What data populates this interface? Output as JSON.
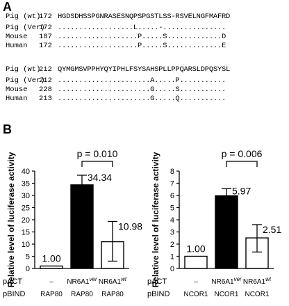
{
  "panel_a": {
    "label": "A",
    "blocks": [
      {
        "rows": [
          {
            "name": "Pig (wt)",
            "start": "172",
            "seq": "HGDSDHSSPGNRASESNQPSPGSTLSS-RSVELNGFMAFRD"
          },
          {
            "name": "Pig (Ver)",
            "start": "172",
            "seq": "..................L.....-..............."
          },
          {
            "name": "Mouse",
            "start": "187",
            "seq": "...................P.....S.............D"
          },
          {
            "name": "Human",
            "start": "172",
            "seq": "...................P.....S.............E"
          }
        ]
      },
      {
        "rows": [
          {
            "name": "Pig (wt)",
            "start": "212",
            "seq": "QYMGMSVPPHYQYIPHLFSYSAHSPLLPPQARSLDPQSYSL"
          },
          {
            "name": "Pig (Ver)",
            "start": "212",
            "seq": "......................A.....P..........."
          },
          {
            "name": "Mouse",
            "start": "228",
            "seq": "......................G.....S..........."
          },
          {
            "name": "Human",
            "start": "213",
            "seq": "......................G.....Q..........."
          }
        ]
      }
    ]
  },
  "panel_b": {
    "label": "B",
    "row_labels": {
      "pact": "pACT",
      "pbind": "pBIND"
    }
  },
  "chart_data": [
    {
      "type": "bar",
      "ylabel": "Relative level of luciferase activity",
      "ylim": [
        0,
        40
      ],
      "yticks": [
        0,
        5,
        10,
        15,
        20,
        25,
        30,
        35,
        40
      ],
      "categories": [
        "-",
        "NR6A1ver",
        "NR6A1wt"
      ],
      "pact": [
        {
          "base": "–",
          "sup": ""
        },
        {
          "base": "NR6A1",
          "sup": "ver"
        },
        {
          "base": "NR6A1",
          "sup": "wt"
        }
      ],
      "pbind": [
        "RAP80",
        "RAP80",
        "RAP80"
      ],
      "values": [
        1.0,
        34.34,
        10.98
      ],
      "value_labels": [
        "1.00",
        "34.34",
        "10.98"
      ],
      "error_upper": [
        1.0,
        38.3,
        19.3
      ],
      "error_lower": [
        1.0,
        30.2,
        3.0
      ],
      "fills": [
        "#ffffff",
        "#000000",
        "#ffffff"
      ],
      "significance": {
        "from": 1,
        "to": 2,
        "label": "p = 0.010"
      }
    },
    {
      "type": "bar",
      "ylabel": "Relative level of luciferase activity",
      "ylim": [
        0,
        8
      ],
      "yticks": [
        0,
        1,
        2,
        3,
        4,
        5,
        6,
        7,
        8
      ],
      "categories": [
        "-",
        "NR6A1ver",
        "NR6A1wt"
      ],
      "pact": [
        {
          "base": "–",
          "sup": ""
        },
        {
          "base": "NR6A1",
          "sup": "ver"
        },
        {
          "base": "NR6A1",
          "sup": "wt"
        }
      ],
      "pbind": [
        "NCOR1",
        "NCOR1",
        "NCOR1"
      ],
      "values": [
        1.0,
        5.97,
        2.51
      ],
      "value_labels": [
        "1.00",
        "5.97",
        "2.51"
      ],
      "error_upper": [
        1.0,
        6.55,
        3.6
      ],
      "error_lower": [
        1.0,
        5.4,
        1.35
      ],
      "fills": [
        "#ffffff",
        "#000000",
        "#ffffff"
      ],
      "significance": {
        "from": 1,
        "to": 2,
        "label": "p = 0.006"
      }
    }
  ]
}
